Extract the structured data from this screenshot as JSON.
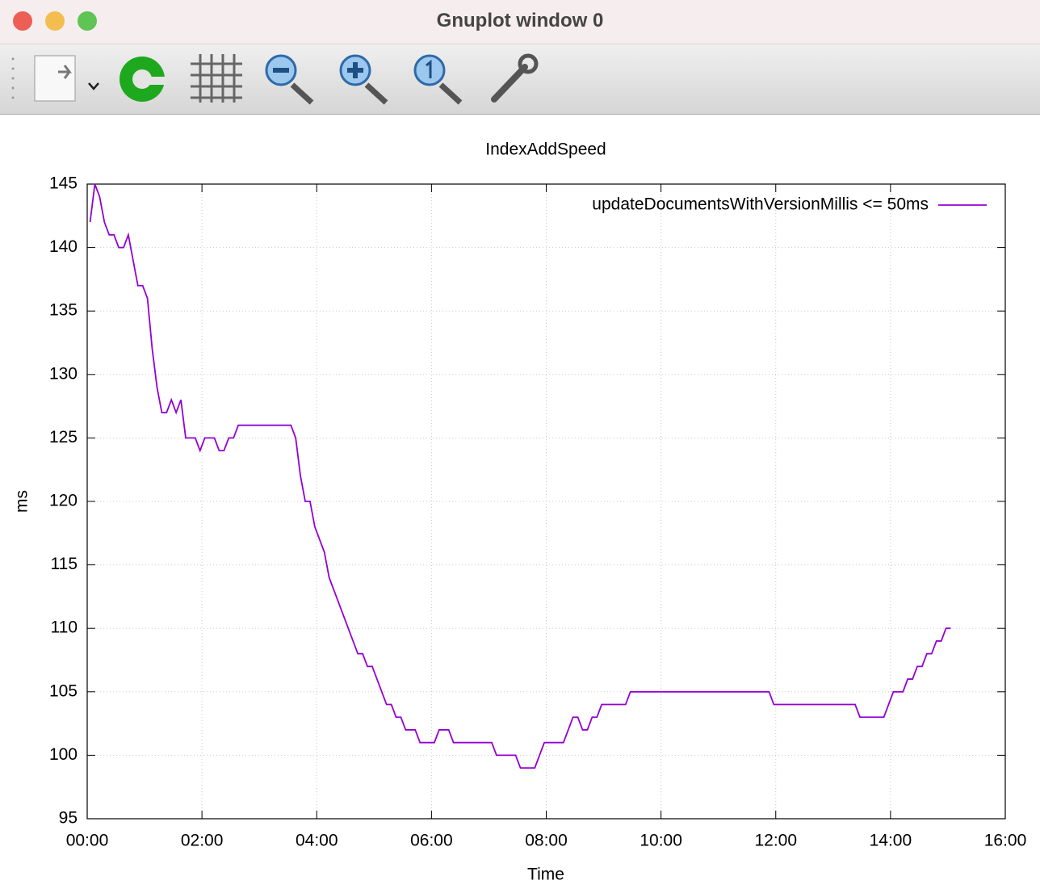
{
  "window": {
    "title": "Gnuplot window 0"
  },
  "chart_data": {
    "type": "line",
    "title": "IndexAddSpeed",
    "x_label": "Time",
    "y_label": "ms",
    "x": [
      3,
      8,
      13,
      18,
      23,
      28,
      33,
      38,
      43,
      48,
      53,
      58,
      63,
      68,
      73,
      78,
      83,
      88,
      93,
      98,
      103,
      113,
      118,
      123,
      133,
      138,
      143,
      148,
      153,
      158,
      213,
      218,
      223,
      228,
      233,
      238,
      243,
      248,
      253,
      283,
      288,
      293,
      298,
      303,
      308,
      313,
      318,
      323,
      328,
      333,
      343,
      348,
      363,
      368,
      378,
      383,
      423,
      428,
      448,
      453,
      468,
      478,
      498,
      508,
      513,
      518,
      523,
      528,
      533,
      538,
      563,
      568,
      713,
      718,
      803,
      808,
      833,
      843,
      853,
      858,
      863,
      868,
      873,
      878,
      883,
      888,
      893,
      898,
      903
    ],
    "series": [
      {
        "name": "updateDocumentsWithVersionMillis <= 50ms",
        "color": "#9400d3",
        "values": [
          142,
          145,
          144,
          142,
          141,
          141,
          140,
          140,
          141,
          139,
          137,
          137,
          136,
          132,
          129,
          127,
          127,
          128,
          127,
          128,
          125,
          125,
          124,
          125,
          125,
          124,
          124,
          125,
          125,
          126,
          126,
          125,
          122,
          120,
          120,
          118,
          117,
          116,
          114,
          108,
          108,
          107,
          107,
          106,
          105,
          104,
          104,
          103,
          103,
          102,
          102,
          101,
          101,
          102,
          102,
          101,
          101,
          100,
          100,
          99,
          99,
          101,
          101,
          103,
          103,
          102,
          102,
          103,
          103,
          104,
          104,
          105,
          105,
          104,
          104,
          103,
          103,
          105,
          105,
          106,
          106,
          107,
          107,
          108,
          108,
          109,
          109,
          110,
          110
        ]
      }
    ],
    "xlim": [
      0,
      960
    ],
    "xticks": [
      {
        "value": 0,
        "label": "00:00"
      },
      {
        "value": 120,
        "label": "02:00"
      },
      {
        "value": 240,
        "label": "04:00"
      },
      {
        "value": 360,
        "label": "06:00"
      },
      {
        "value": 480,
        "label": "08:00"
      },
      {
        "value": 600,
        "label": "10:00"
      },
      {
        "value": 720,
        "label": "12:00"
      },
      {
        "value": 840,
        "label": "14:00"
      },
      {
        "value": 960,
        "label": "16:00"
      }
    ],
    "ylim": [
      95,
      145
    ],
    "yticks": [
      95,
      100,
      105,
      110,
      115,
      120,
      125,
      130,
      135,
      140,
      145
    ],
    "grid": true,
    "legend": "top-right"
  }
}
